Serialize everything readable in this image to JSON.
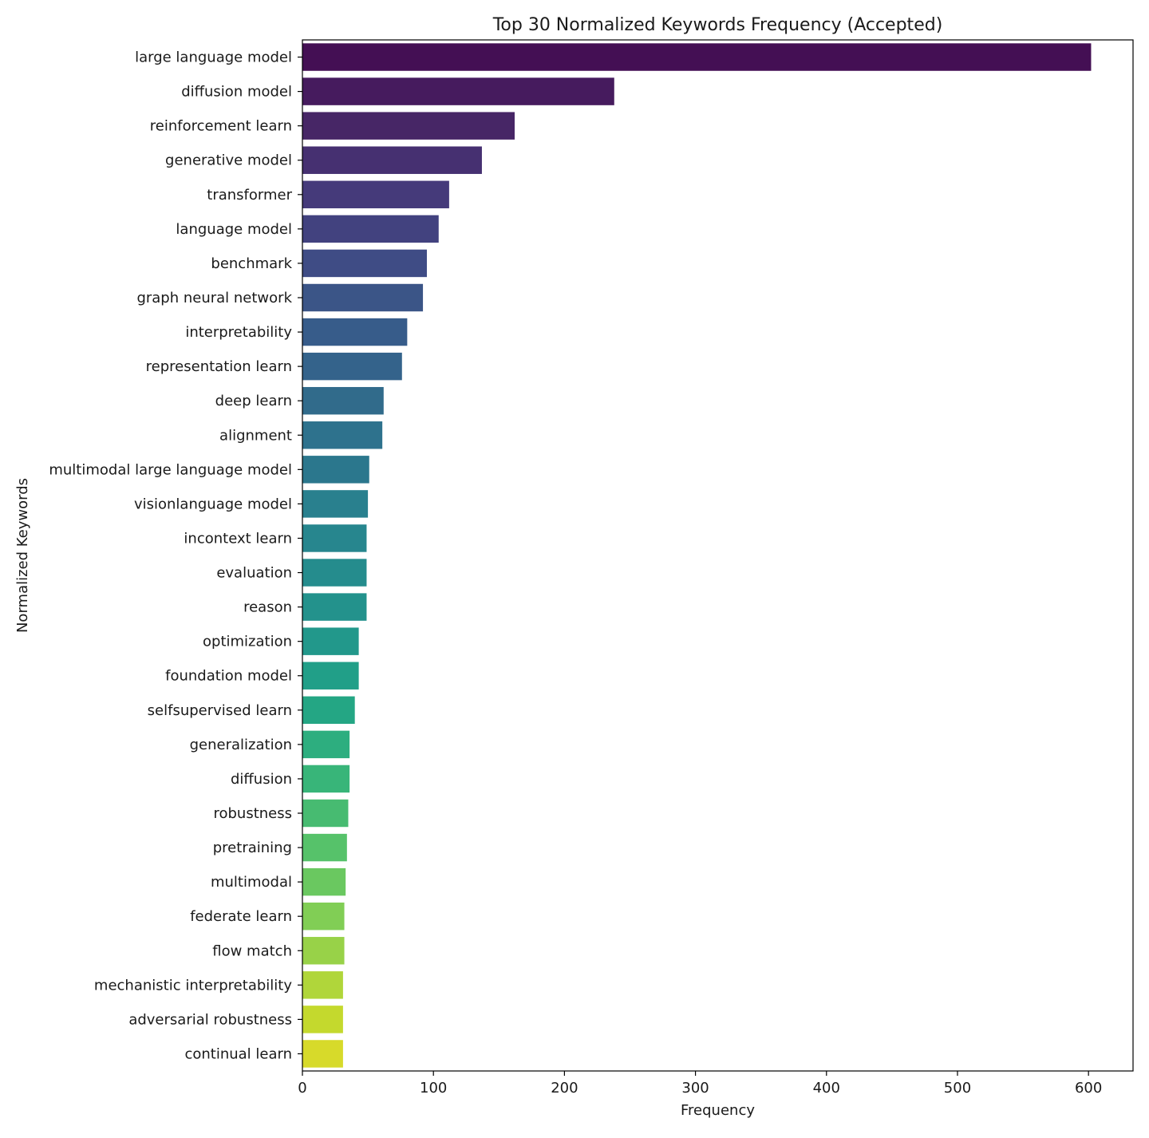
{
  "chart_data": {
    "type": "bar",
    "orientation": "horizontal",
    "title": "Top 30 Normalized Keywords Frequency (Accepted)",
    "xlabel": "Frequency",
    "ylabel": "Normalized Keywords",
    "xlim": [
      0,
      634
    ],
    "xticks": [
      0,
      100,
      200,
      300,
      400,
      500,
      600
    ],
    "grid": false,
    "colormap": "viridis",
    "categories": [
      "large language model",
      "diffusion model",
      "reinforcement learn",
      "generative model",
      "transformer",
      "language model",
      "benchmark",
      "graph neural network",
      "interpretability",
      "representation learn",
      "deep learn",
      "alignment",
      "multimodal large language model",
      "visionlanguage model",
      "incontext learn",
      "evaluation",
      "reason",
      "optimization",
      "foundation model",
      "selfsupervised learn",
      "generalization",
      "diffusion",
      "robustness",
      "pretraining",
      "multimodal",
      "federate learn",
      "flow match",
      "mechanistic interpretability",
      "adversarial robustness",
      "continual learn"
    ],
    "values": [
      602,
      238,
      162,
      137,
      112,
      104,
      95,
      92,
      80,
      76,
      62,
      61,
      51,
      50,
      49,
      49,
      49,
      43,
      43,
      40,
      36,
      36,
      35,
      34,
      33,
      32,
      32,
      31,
      31,
      31
    ],
    "colors": [
      "#440f54",
      "#461b5e",
      "#472666",
      "#463071",
      "#453a7a",
      "#42427f",
      "#3f4c85",
      "#3b5587",
      "#375c8a",
      "#34638b",
      "#316b8b",
      "#2e728d",
      "#2b778d",
      "#29808e",
      "#27868e",
      "#258c8d",
      "#23928c",
      "#22988b",
      "#219f88",
      "#24a684",
      "#2dae7f",
      "#38b579",
      "#47bb71",
      "#56c26a",
      "#6ac860",
      "#81ce55",
      "#98d248",
      "#b0d63a",
      "#c4d92d",
      "#d7da2a"
    ]
  }
}
